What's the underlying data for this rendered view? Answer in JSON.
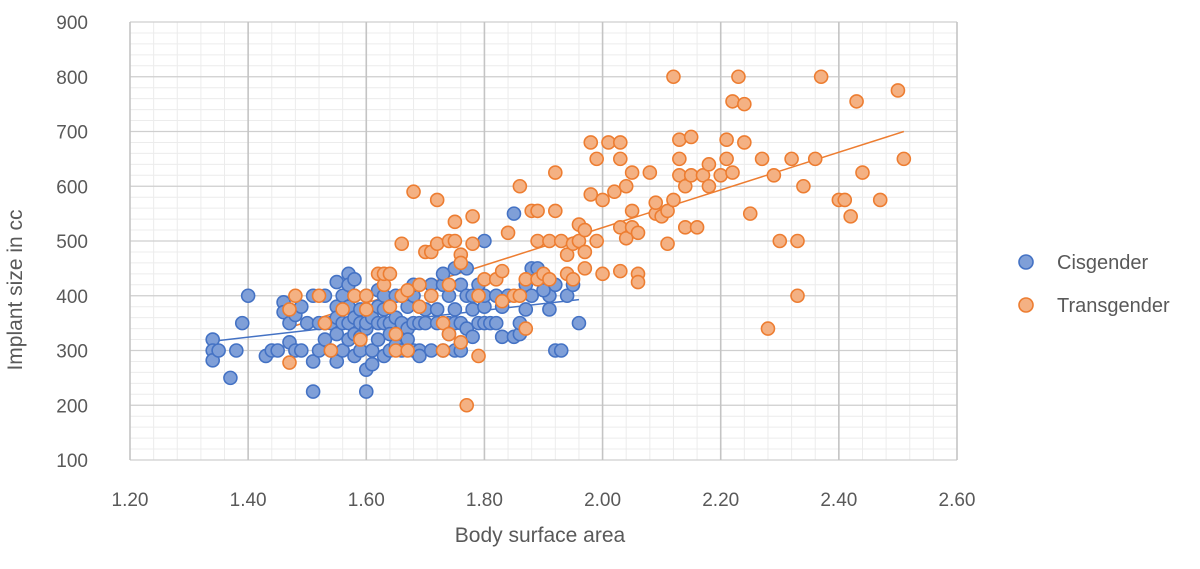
{
  "chart_data": {
    "type": "scatter",
    "title": "",
    "xlabel": "Body surface area",
    "ylabel": "Implant size in cc",
    "xlim": [
      1.2,
      2.6
    ],
    "ylim": [
      100,
      900
    ],
    "x_ticks": [
      "1.20",
      "1.40",
      "1.60",
      "1.80",
      "2.00",
      "2.20",
      "2.40",
      "2.60"
    ],
    "y_ticks": [
      "100",
      "200",
      "300",
      "400",
      "500",
      "600",
      "700",
      "800",
      "900"
    ],
    "grid": true,
    "legend_position": "right",
    "series": [
      {
        "name": "Cisgender",
        "color": "#4472C4",
        "fill": "#7F9FD8",
        "trendline": {
          "x": [
            1.34,
            1.96
          ],
          "y": [
            317,
            393
          ]
        },
        "points": [
          [
            1.34,
            320
          ],
          [
            1.34,
            300
          ],
          [
            1.34,
            282
          ],
          [
            1.35,
            300
          ],
          [
            1.37,
            250
          ],
          [
            1.38,
            300
          ],
          [
            1.39,
            350
          ],
          [
            1.4,
            400
          ],
          [
            1.43,
            290
          ],
          [
            1.44,
            300
          ],
          [
            1.45,
            300
          ],
          [
            1.46,
            388
          ],
          [
            1.46,
            370
          ],
          [
            1.47,
            350
          ],
          [
            1.47,
            315
          ],
          [
            1.48,
            300
          ],
          [
            1.48,
            365
          ],
          [
            1.49,
            300
          ],
          [
            1.49,
            380
          ],
          [
            1.5,
            350
          ],
          [
            1.51,
            225
          ],
          [
            1.51,
            280
          ],
          [
            1.51,
            400
          ],
          [
            1.52,
            300
          ],
          [
            1.52,
            350
          ],
          [
            1.53,
            320
          ],
          [
            1.53,
            350
          ],
          [
            1.53,
            400
          ],
          [
            1.54,
            350
          ],
          [
            1.54,
            300
          ],
          [
            1.55,
            425
          ],
          [
            1.55,
            380
          ],
          [
            1.55,
            360
          ],
          [
            1.55,
            330
          ],
          [
            1.55,
            280
          ],
          [
            1.56,
            350
          ],
          [
            1.56,
            300
          ],
          [
            1.56,
            400
          ],
          [
            1.57,
            440
          ],
          [
            1.57,
            420
          ],
          [
            1.57,
            380
          ],
          [
            1.57,
            350
          ],
          [
            1.57,
            320
          ],
          [
            1.58,
            430
          ],
          [
            1.58,
            400
          ],
          [
            1.58,
            360
          ],
          [
            1.58,
            330
          ],
          [
            1.58,
            290
          ],
          [
            1.59,
            375
          ],
          [
            1.59,
            350
          ],
          [
            1.59,
            325
          ],
          [
            1.59,
            300
          ],
          [
            1.6,
            265
          ],
          [
            1.6,
            225
          ],
          [
            1.6,
            340
          ],
          [
            1.6,
            350
          ],
          [
            1.6,
            400
          ],
          [
            1.61,
            275
          ],
          [
            1.61,
            360
          ],
          [
            1.61,
            300
          ],
          [
            1.62,
            350
          ],
          [
            1.62,
            410
          ],
          [
            1.62,
            380
          ],
          [
            1.62,
            320
          ],
          [
            1.63,
            400
          ],
          [
            1.63,
            375
          ],
          [
            1.63,
            350
          ],
          [
            1.63,
            290
          ],
          [
            1.64,
            350
          ],
          [
            1.64,
            300
          ],
          [
            1.64,
            330
          ],
          [
            1.65,
            400
          ],
          [
            1.65,
            360
          ],
          [
            1.65,
            310
          ],
          [
            1.66,
            300
          ],
          [
            1.66,
            350
          ],
          [
            1.66,
            400
          ],
          [
            1.67,
            380
          ],
          [
            1.67,
            340
          ],
          [
            1.67,
            320
          ],
          [
            1.68,
            300
          ],
          [
            1.68,
            350
          ],
          [
            1.68,
            400
          ],
          [
            1.68,
            420
          ],
          [
            1.69,
            350
          ],
          [
            1.69,
            300
          ],
          [
            1.69,
            290
          ],
          [
            1.7,
            375
          ],
          [
            1.7,
            350
          ],
          [
            1.71,
            400
          ],
          [
            1.71,
            420
          ],
          [
            1.71,
            300
          ],
          [
            1.72,
            350
          ],
          [
            1.72,
            375
          ],
          [
            1.73,
            300
          ],
          [
            1.73,
            420
          ],
          [
            1.73,
            440
          ],
          [
            1.74,
            400
          ],
          [
            1.74,
            350
          ],
          [
            1.74,
            330
          ],
          [
            1.75,
            300
          ],
          [
            1.75,
            350
          ],
          [
            1.75,
            375
          ],
          [
            1.75,
            450
          ],
          [
            1.76,
            300
          ],
          [
            1.76,
            420
          ],
          [
            1.76,
            350
          ],
          [
            1.77,
            340
          ],
          [
            1.77,
            400
          ],
          [
            1.77,
            450
          ],
          [
            1.78,
            400
          ],
          [
            1.78,
            325
          ],
          [
            1.78,
            375
          ],
          [
            1.79,
            350
          ],
          [
            1.79,
            420
          ],
          [
            1.8,
            350
          ],
          [
            1.8,
            380
          ],
          [
            1.8,
            400
          ],
          [
            1.8,
            500
          ],
          [
            1.81,
            350
          ],
          [
            1.82,
            350
          ],
          [
            1.82,
            400
          ],
          [
            1.83,
            325
          ],
          [
            1.83,
            380
          ],
          [
            1.84,
            400
          ],
          [
            1.85,
            325
          ],
          [
            1.85,
            550
          ],
          [
            1.86,
            330
          ],
          [
            1.86,
            350
          ],
          [
            1.87,
            420
          ],
          [
            1.87,
            375
          ],
          [
            1.88,
            450
          ],
          [
            1.88,
            400
          ],
          [
            1.89,
            450
          ],
          [
            1.9,
            430
          ],
          [
            1.91,
            375
          ],
          [
            1.91,
            400
          ],
          [
            1.92,
            300
          ],
          [
            1.93,
            300
          ],
          [
            1.94,
            400
          ],
          [
            1.95,
            420
          ],
          [
            1.96,
            350
          ],
          [
            1.92,
            420
          ],
          [
            1.9,
            410
          ]
        ]
      },
      {
        "name": "Transgender",
        "color": "#ED7D31",
        "fill": "#F4B183",
        "trendline": {
          "x": [
            1.47,
            2.51
          ],
          "y": [
            342,
            700
          ]
        },
        "points": [
          [
            1.47,
            375
          ],
          [
            1.47,
            278
          ],
          [
            1.48,
            400
          ],
          [
            1.52,
            400
          ],
          [
            1.53,
            350
          ],
          [
            1.54,
            300
          ],
          [
            1.56,
            375
          ],
          [
            1.58,
            400
          ],
          [
            1.59,
            320
          ],
          [
            1.6,
            375
          ],
          [
            1.6,
            400
          ],
          [
            1.62,
            440
          ],
          [
            1.63,
            420
          ],
          [
            1.63,
            440
          ],
          [
            1.64,
            440
          ],
          [
            1.64,
            380
          ],
          [
            1.65,
            330
          ],
          [
            1.65,
            300
          ],
          [
            1.66,
            495
          ],
          [
            1.66,
            400
          ],
          [
            1.67,
            410
          ],
          [
            1.67,
            300
          ],
          [
            1.68,
            590
          ],
          [
            1.69,
            420
          ],
          [
            1.69,
            380
          ],
          [
            1.7,
            480
          ],
          [
            1.71,
            400
          ],
          [
            1.71,
            480
          ],
          [
            1.72,
            575
          ],
          [
            1.72,
            495
          ],
          [
            1.73,
            300
          ],
          [
            1.73,
            350
          ],
          [
            1.74,
            500
          ],
          [
            1.74,
            420
          ],
          [
            1.74,
            330
          ],
          [
            1.75,
            535
          ],
          [
            1.75,
            500
          ],
          [
            1.76,
            475
          ],
          [
            1.76,
            460
          ],
          [
            1.76,
            315
          ],
          [
            1.77,
            200
          ],
          [
            1.78,
            495
          ],
          [
            1.78,
            545
          ],
          [
            1.79,
            290
          ],
          [
            1.79,
            400
          ],
          [
            1.8,
            430
          ],
          [
            1.82,
            430
          ],
          [
            1.83,
            390
          ],
          [
            1.83,
            445
          ],
          [
            1.84,
            515
          ],
          [
            1.85,
            400
          ],
          [
            1.86,
            400
          ],
          [
            1.86,
            600
          ],
          [
            1.87,
            430
          ],
          [
            1.87,
            340
          ],
          [
            1.88,
            555
          ],
          [
            1.89,
            555
          ],
          [
            1.89,
            500
          ],
          [
            1.89,
            430
          ],
          [
            1.9,
            440
          ],
          [
            1.91,
            500
          ],
          [
            1.91,
            430
          ],
          [
            1.92,
            555
          ],
          [
            1.92,
            625
          ],
          [
            1.93,
            500
          ],
          [
            1.94,
            440
          ],
          [
            1.94,
            475
          ],
          [
            1.95,
            495
          ],
          [
            1.95,
            430
          ],
          [
            1.96,
            530
          ],
          [
            1.96,
            500
          ],
          [
            1.97,
            520
          ],
          [
            1.97,
            450
          ],
          [
            1.97,
            480
          ],
          [
            1.98,
            585
          ],
          [
            1.98,
            680
          ],
          [
            1.99,
            500
          ],
          [
            1.99,
            650
          ],
          [
            2.0,
            440
          ],
          [
            2.0,
            575
          ],
          [
            2.01,
            680
          ],
          [
            2.02,
            590
          ],
          [
            2.03,
            445
          ],
          [
            2.03,
            525
          ],
          [
            2.03,
            650
          ],
          [
            2.03,
            680
          ],
          [
            2.04,
            600
          ],
          [
            2.04,
            505
          ],
          [
            2.05,
            525
          ],
          [
            2.05,
            555
          ],
          [
            2.05,
            625
          ],
          [
            2.06,
            440
          ],
          [
            2.06,
            425
          ],
          [
            2.06,
            515
          ],
          [
            2.08,
            625
          ],
          [
            2.09,
            550
          ],
          [
            2.09,
            570
          ],
          [
            2.1,
            545
          ],
          [
            2.11,
            495
          ],
          [
            2.11,
            555
          ],
          [
            2.12,
            575
          ],
          [
            2.12,
            800
          ],
          [
            2.13,
            620
          ],
          [
            2.13,
            650
          ],
          [
            2.13,
            685
          ],
          [
            2.14,
            525
          ],
          [
            2.14,
            600
          ],
          [
            2.15,
            620
          ],
          [
            2.15,
            690
          ],
          [
            2.16,
            525
          ],
          [
            2.17,
            620
          ],
          [
            2.18,
            640
          ],
          [
            2.18,
            600
          ],
          [
            2.2,
            620
          ],
          [
            2.21,
            650
          ],
          [
            2.21,
            685
          ],
          [
            2.22,
            755
          ],
          [
            2.22,
            625
          ],
          [
            2.23,
            800
          ],
          [
            2.24,
            750
          ],
          [
            2.24,
            680
          ],
          [
            2.25,
            550
          ],
          [
            2.27,
            650
          ],
          [
            2.28,
            340
          ],
          [
            2.29,
            620
          ],
          [
            2.3,
            500
          ],
          [
            2.32,
            650
          ],
          [
            2.33,
            400
          ],
          [
            2.33,
            500
          ],
          [
            2.34,
            600
          ],
          [
            2.36,
            650
          ],
          [
            2.37,
            800
          ],
          [
            2.4,
            575
          ],
          [
            2.41,
            575
          ],
          [
            2.42,
            545
          ],
          [
            2.43,
            755
          ],
          [
            2.44,
            625
          ],
          [
            2.47,
            575
          ],
          [
            2.5,
            775
          ],
          [
            2.51,
            650
          ]
        ]
      }
    ]
  }
}
